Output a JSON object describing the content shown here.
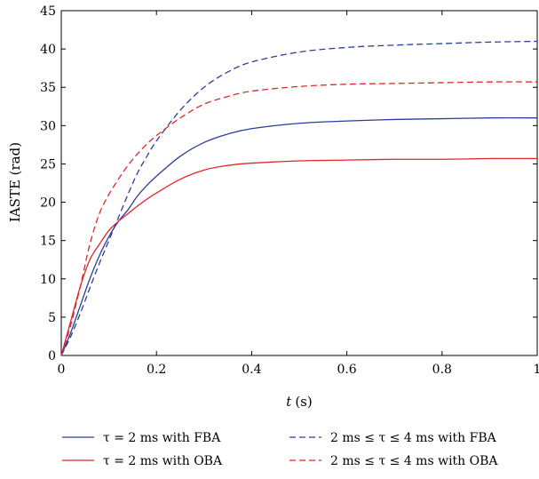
{
  "chart_data": {
    "type": "line",
    "title": "",
    "xlabel_italic": "t",
    "xlabel_unit": "(s)",
    "ylabel": "IASTE (rad)",
    "xlim": [
      0,
      1
    ],
    "ylim": [
      0,
      45
    ],
    "xticks": [
      "0",
      "0.2",
      "0.4",
      "0.6",
      "0.8",
      "1"
    ],
    "yticks": [
      "0",
      "5",
      "10",
      "15",
      "20",
      "25",
      "30",
      "35",
      "40",
      "45"
    ],
    "grid": false,
    "legend_placement": "bottom",
    "series": [
      {
        "name": "τ = 2 ms with FBA",
        "color": "#2a3f9c",
        "dash": "solid",
        "x": [
          0,
          0.02,
          0.04,
          0.06,
          0.08,
          0.1,
          0.12,
          0.14,
          0.16,
          0.18,
          0.2,
          0.25,
          0.3,
          0.35,
          0.4,
          0.5,
          0.6,
          0.7,
          0.8,
          0.9,
          1.0
        ],
        "y": [
          0,
          3.0,
          6.5,
          10.0,
          13.0,
          15.5,
          17.5,
          19.0,
          20.8,
          22.2,
          23.4,
          26.0,
          27.8,
          28.9,
          29.6,
          30.3,
          30.6,
          30.8,
          30.9,
          31.0,
          31.0
        ]
      },
      {
        "name": "τ = 2 ms with OBA",
        "color": "#e0262a",
        "dash": "solid",
        "x": [
          0,
          0.02,
          0.04,
          0.06,
          0.08,
          0.1,
          0.12,
          0.14,
          0.16,
          0.18,
          0.2,
          0.25,
          0.3,
          0.35,
          0.4,
          0.5,
          0.6,
          0.7,
          0.8,
          0.9,
          1.0
        ],
        "y": [
          0,
          4.5,
          9.0,
          12.5,
          14.5,
          16.3,
          17.5,
          18.5,
          19.5,
          20.4,
          21.2,
          23.0,
          24.2,
          24.8,
          25.1,
          25.4,
          25.5,
          25.6,
          25.6,
          25.7,
          25.7
        ]
      },
      {
        "name": "2 ms ≤ τ ≤ 4 ms with FBA",
        "color": "#2a3f9c",
        "dash": "dashed",
        "x": [
          0,
          0.02,
          0.04,
          0.06,
          0.08,
          0.1,
          0.12,
          0.14,
          0.16,
          0.18,
          0.2,
          0.25,
          0.3,
          0.35,
          0.4,
          0.5,
          0.6,
          0.7,
          0.8,
          0.9,
          1.0
        ],
        "y": [
          0,
          2.5,
          5.5,
          8.8,
          12.0,
          15.0,
          18.0,
          21.0,
          23.8,
          26.0,
          28.0,
          32.0,
          35.0,
          37.0,
          38.3,
          39.6,
          40.2,
          40.5,
          40.7,
          40.9,
          41.0
        ]
      },
      {
        "name": "2 ms ≤ τ ≤ 4 ms with OBA",
        "color": "#e0262a",
        "dash": "dashed",
        "x": [
          0,
          0.02,
          0.04,
          0.06,
          0.08,
          0.1,
          0.12,
          0.14,
          0.16,
          0.18,
          0.2,
          0.25,
          0.3,
          0.35,
          0.4,
          0.5,
          0.6,
          0.7,
          0.8,
          0.9,
          1.0
        ],
        "y": [
          0,
          4.0,
          9.0,
          14.5,
          18.5,
          21.0,
          23.0,
          24.8,
          26.3,
          27.6,
          28.7,
          31.0,
          32.8,
          33.8,
          34.5,
          35.1,
          35.4,
          35.5,
          35.6,
          35.7,
          35.7
        ]
      }
    ]
  }
}
